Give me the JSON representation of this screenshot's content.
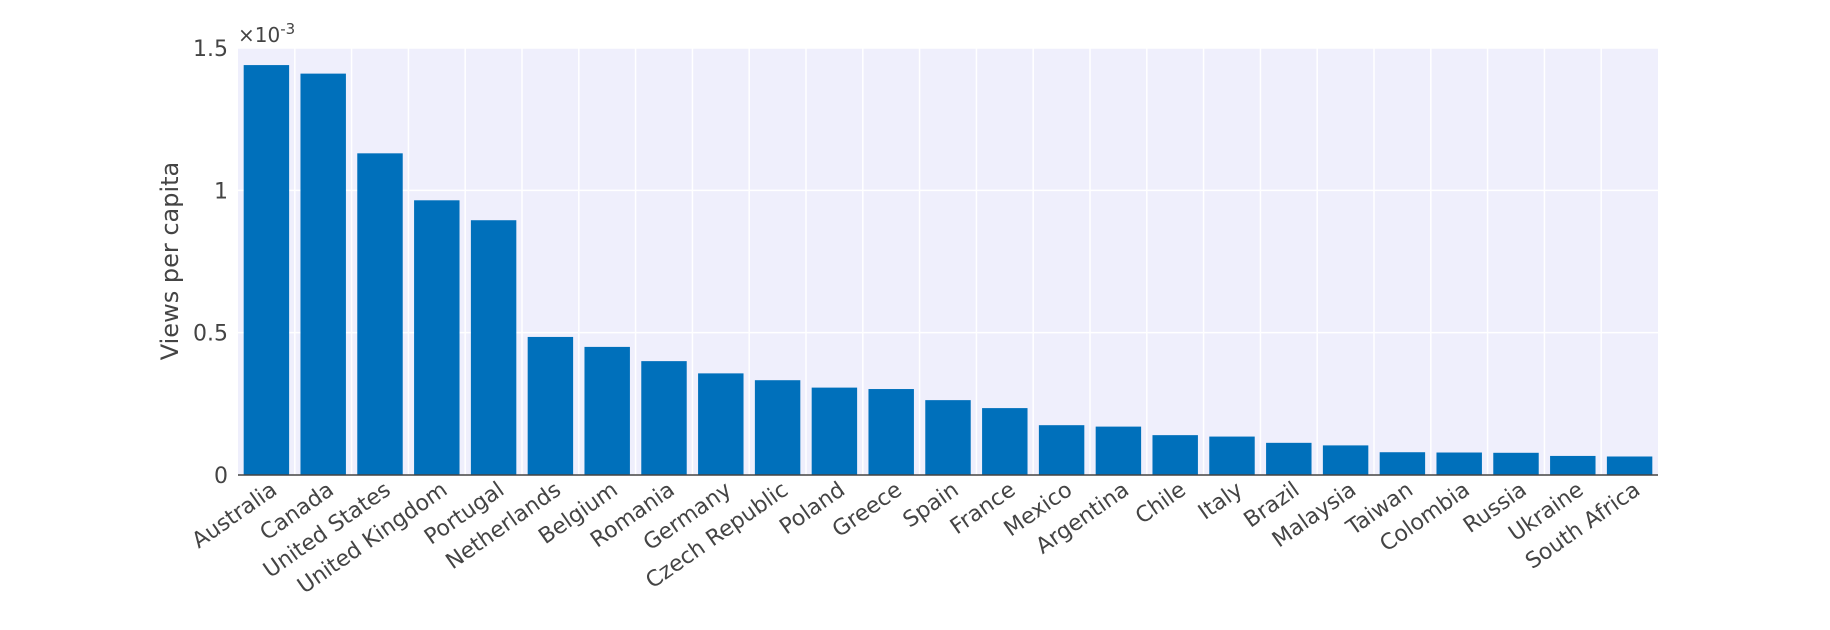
{
  "chart_data": {
    "type": "bar",
    "ylabel": "Views per capita",
    "exponent_label": "×10",
    "exponent_power": "-3",
    "ylim": [
      0,
      1.5
    ],
    "yticks": [
      0,
      0.5,
      1,
      1.5
    ],
    "ytick_labels": [
      "0",
      "0.5",
      "1",
      "1.5"
    ],
    "grid": true,
    "colors": {
      "bar": "#0070BB",
      "plot_background": "#EFEFFC",
      "grid": "#FFFFFF",
      "axis": "#444444"
    },
    "categories": [
      "Australia",
      "Canada",
      "United States",
      "United Kingdom",
      "Portugal",
      "Netherlands",
      "Belgium",
      "Romania",
      "Germany",
      "Czech Republic",
      "Poland",
      "Greece",
      "Spain",
      "France",
      "Mexico",
      "Argentina",
      "Chile",
      "Italy",
      "Brazil",
      "Malaysia",
      "Taiwan",
      "Colombia",
      "Russia",
      "Ukraine",
      "South Africa"
    ],
    "values": [
      1.44,
      1.41,
      1.13,
      0.965,
      0.895,
      0.485,
      0.45,
      0.4,
      0.357,
      0.333,
      0.307,
      0.302,
      0.263,
      0.235,
      0.175,
      0.17,
      0.14,
      0.135,
      0.113,
      0.104,
      0.08,
      0.079,
      0.078,
      0.067,
      0.065
    ]
  }
}
